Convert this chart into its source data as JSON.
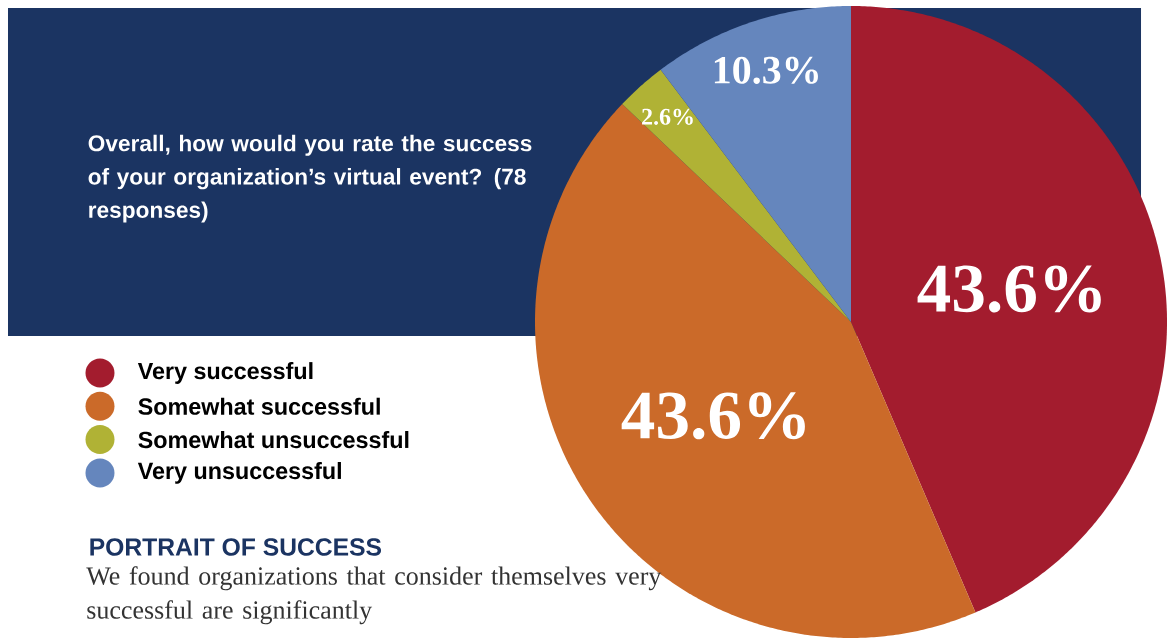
{
  "chart_data": {
    "type": "pie",
    "title": "Overall, how would you rate the success of your organization’s virtual event? (78 responses)",
    "categories": [
      "Very successful",
      "Somewhat successful",
      "Somewhat unsuccessful",
      "Very unsuccessful"
    ],
    "values": [
      43.6,
      43.6,
      2.6,
      10.3
    ],
    "colors": [
      "#a31c2e",
      "#cb6a29",
      "#b0b235",
      "#6586bd"
    ],
    "value_labels": [
      "43.6%",
      "43.6%",
      "2.6%",
      "10.3%"
    ],
    "legend": "left",
    "annotations": [
      "PORTRAIT OF SUCCESS",
      "We found organizations that consider themselves very successful are significantly"
    ]
  }
}
